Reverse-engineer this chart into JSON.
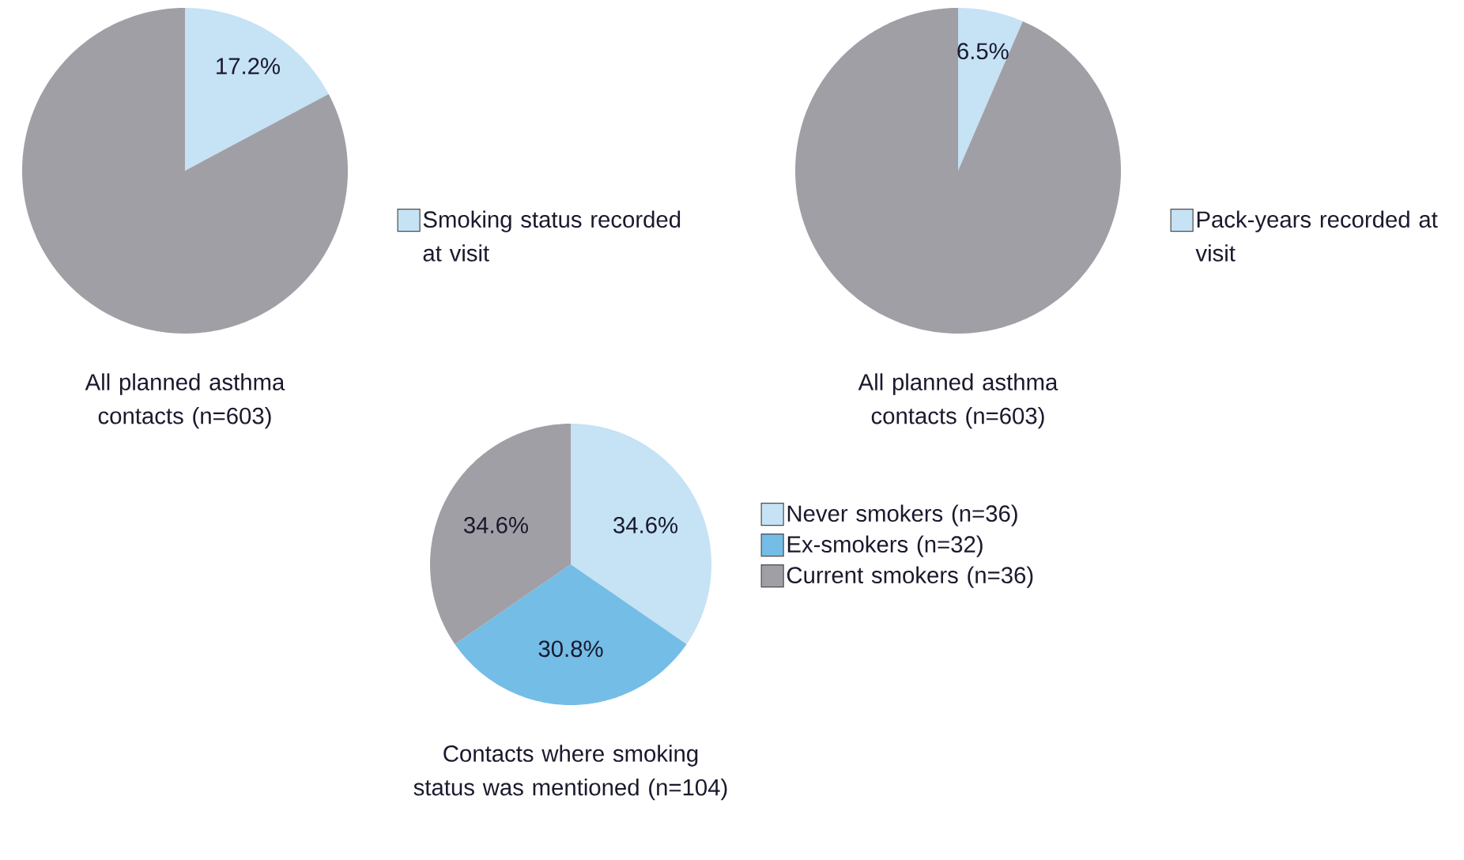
{
  "chart_data": [
    {
      "type": "pie",
      "title": "All planned asthma contacts (n=603)",
      "categories": [
        "Smoking status recorded at visit",
        null
      ],
      "values": [
        17.2,
        82.8
      ],
      "colors": [
        "#c6e2f5",
        "#a19fa6"
      ],
      "value_labels": [
        "17.2%",
        null
      ],
      "legend": "right"
    },
    {
      "type": "pie",
      "title": "All planned asthma contacts (n=603)",
      "categories": [
        "Pack-years recorded at visit",
        null
      ],
      "values": [
        6.5,
        93.5
      ],
      "colors": [
        "#c6e2f5",
        "#a19fa6"
      ],
      "value_labels": [
        "6.5%",
        null
      ],
      "legend": "right"
    },
    {
      "type": "pie",
      "title": "Contacts where smoking status was mentioned (n=104)",
      "categories": [
        "Never smokers (n=36)",
        "Ex-smokers (n=32)",
        "Current smokers (n=36)"
      ],
      "values": [
        34.6,
        30.8,
        34.6
      ],
      "colors": [
        "#c6e2f5",
        "#74bde6",
        "#a19fa6"
      ],
      "value_labels": [
        "34.6%",
        "30.8%",
        "34.6%"
      ],
      "legend": "right"
    }
  ]
}
